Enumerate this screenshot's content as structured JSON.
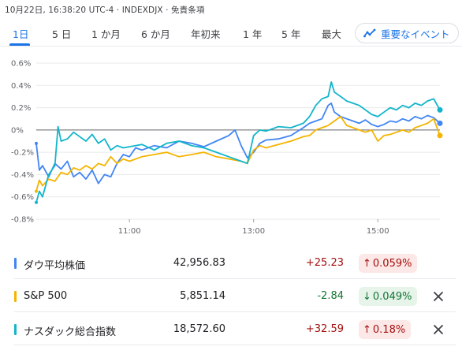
{
  "header": {
    "text": "10月22日, 16:38:20 UTC-4 · INDEXDJX · 免責条項"
  },
  "tabs": [
    {
      "label": "1日",
      "active": true
    },
    {
      "label": "5 日",
      "active": false
    },
    {
      "label": "1 か月",
      "active": false
    },
    {
      "label": "6 か月",
      "active": false
    },
    {
      "label": "年初来",
      "active": false
    },
    {
      "label": "1 年",
      "active": false
    },
    {
      "label": "5 年",
      "active": false
    },
    {
      "label": "最大",
      "active": false
    }
  ],
  "events_button": {
    "label": "重要なイベント",
    "icon": "trend-icon"
  },
  "chart_data": {
    "type": "line",
    "x_ticks": [
      "11:00",
      "13:00",
      "15:00"
    ],
    "y_ticks": [
      "0.6%",
      "0.4%",
      "0.2%",
      "0%",
      "-0.2%",
      "-0.4%",
      "-0.6%",
      "-0.8%"
    ],
    "ylim": [
      -0.8,
      0.6
    ],
    "x_unit": "hours",
    "xlim": [
      9.5,
      16.0
    ],
    "baseline": 0,
    "series": [
      {
        "name": "ダウ平均株価",
        "color": "#4285f4",
        "points": [
          [
            9.5,
            -0.12
          ],
          [
            9.55,
            -0.36
          ],
          [
            9.6,
            -0.32
          ],
          [
            9.7,
            -0.42
          ],
          [
            9.8,
            -0.3
          ],
          [
            9.9,
            -0.35
          ],
          [
            10.0,
            -0.28
          ],
          [
            10.1,
            -0.42
          ],
          [
            10.2,
            -0.38
          ],
          [
            10.3,
            -0.44
          ],
          [
            10.4,
            -0.36
          ],
          [
            10.5,
            -0.48
          ],
          [
            10.6,
            -0.4
          ],
          [
            10.7,
            -0.42
          ],
          [
            10.8,
            -0.3
          ],
          [
            10.9,
            -0.22
          ],
          [
            11.0,
            -0.24
          ],
          [
            11.1,
            -0.16
          ],
          [
            11.2,
            -0.18
          ],
          [
            11.4,
            -0.14
          ],
          [
            11.6,
            -0.16
          ],
          [
            11.8,
            -0.1
          ],
          [
            12.0,
            -0.12
          ],
          [
            12.2,
            -0.15
          ],
          [
            12.4,
            -0.1
          ],
          [
            12.6,
            -0.05
          ],
          [
            12.7,
            0.0
          ],
          [
            12.8,
            -0.14
          ],
          [
            12.9,
            -0.25
          ],
          [
            13.0,
            -0.2
          ],
          [
            13.1,
            -0.12
          ],
          [
            13.2,
            -0.09
          ],
          [
            13.4,
            -0.08
          ],
          [
            13.6,
            -0.05
          ],
          [
            13.8,
            0.02
          ],
          [
            13.9,
            0.06
          ],
          [
            14.0,
            0.08
          ],
          [
            14.1,
            0.1
          ],
          [
            14.2,
            0.22
          ],
          [
            14.25,
            0.24
          ],
          [
            14.3,
            0.16
          ],
          [
            14.4,
            0.12
          ],
          [
            14.5,
            0.1
          ],
          [
            14.6,
            0.08
          ],
          [
            14.7,
            0.06
          ],
          [
            14.8,
            0.09
          ],
          [
            14.9,
            0.05
          ],
          [
            15.0,
            0.03
          ],
          [
            15.1,
            0.05
          ],
          [
            15.2,
            0.08
          ],
          [
            15.3,
            0.07
          ],
          [
            15.4,
            0.1
          ],
          [
            15.5,
            0.08
          ],
          [
            15.6,
            0.12
          ],
          [
            15.7,
            0.1
          ],
          [
            15.8,
            0.13
          ],
          [
            15.9,
            0.11
          ],
          [
            16.0,
            0.06
          ]
        ]
      },
      {
        "name": "S&P 500",
        "color": "#f4b400",
        "points": [
          [
            9.5,
            -0.55
          ],
          [
            9.55,
            -0.45
          ],
          [
            9.6,
            -0.5
          ],
          [
            9.7,
            -0.44
          ],
          [
            9.8,
            -0.46
          ],
          [
            9.9,
            -0.38
          ],
          [
            10.0,
            -0.4
          ],
          [
            10.1,
            -0.34
          ],
          [
            10.2,
            -0.36
          ],
          [
            10.3,
            -0.32
          ],
          [
            10.4,
            -0.35
          ],
          [
            10.5,
            -0.3
          ],
          [
            10.6,
            -0.32
          ],
          [
            10.7,
            -0.24
          ],
          [
            10.8,
            -0.3
          ],
          [
            10.9,
            -0.26
          ],
          [
            11.0,
            -0.28
          ],
          [
            11.2,
            -0.24
          ],
          [
            11.4,
            -0.22
          ],
          [
            11.6,
            -0.2
          ],
          [
            11.8,
            -0.24
          ],
          [
            12.0,
            -0.22
          ],
          [
            12.2,
            -0.2
          ],
          [
            12.4,
            -0.24
          ],
          [
            12.6,
            -0.26
          ],
          [
            12.8,
            -0.28
          ],
          [
            12.9,
            -0.3
          ],
          [
            13.0,
            -0.18
          ],
          [
            13.1,
            -0.14
          ],
          [
            13.2,
            -0.16
          ],
          [
            13.4,
            -0.13
          ],
          [
            13.6,
            -0.1
          ],
          [
            13.8,
            -0.06
          ],
          [
            13.9,
            -0.05
          ],
          [
            14.0,
            0.0
          ],
          [
            14.1,
            0.02
          ],
          [
            14.2,
            0.04
          ],
          [
            14.3,
            0.08
          ],
          [
            14.4,
            0.12
          ],
          [
            14.45,
            0.08
          ],
          [
            14.5,
            0.04
          ],
          [
            14.6,
            0.02
          ],
          [
            14.7,
            0.0
          ],
          [
            14.8,
            -0.02
          ],
          [
            14.9,
            0.0
          ],
          [
            15.0,
            -0.1
          ],
          [
            15.1,
            -0.05
          ],
          [
            15.2,
            -0.04
          ],
          [
            15.3,
            -0.02
          ],
          [
            15.4,
            0.0
          ],
          [
            15.5,
            -0.02
          ],
          [
            15.6,
            0.02
          ],
          [
            15.7,
            0.04
          ],
          [
            15.8,
            0.06
          ],
          [
            15.9,
            0.1
          ],
          [
            16.0,
            -0.05
          ]
        ]
      },
      {
        "name": "ナスダック総合指数",
        "color": "#12b5cb",
        "points": [
          [
            9.5,
            -0.65
          ],
          [
            9.55,
            -0.55
          ],
          [
            9.6,
            -0.6
          ],
          [
            9.7,
            -0.4
          ],
          [
            9.8,
            -0.32
          ],
          [
            9.85,
            0.03
          ],
          [
            9.9,
            -0.1
          ],
          [
            10.0,
            -0.08
          ],
          [
            10.1,
            -0.02
          ],
          [
            10.2,
            -0.06
          ],
          [
            10.3,
            -0.1
          ],
          [
            10.4,
            -0.04
          ],
          [
            10.5,
            -0.12
          ],
          [
            10.6,
            -0.08
          ],
          [
            10.7,
            -0.18
          ],
          [
            10.8,
            -0.14
          ],
          [
            10.9,
            -0.16
          ],
          [
            11.0,
            -0.15
          ],
          [
            11.2,
            -0.13
          ],
          [
            11.4,
            -0.18
          ],
          [
            11.6,
            -0.12
          ],
          [
            11.8,
            -0.1
          ],
          [
            12.0,
            -0.14
          ],
          [
            12.2,
            -0.16
          ],
          [
            12.4,
            -0.2
          ],
          [
            12.6,
            -0.24
          ],
          [
            12.8,
            -0.28
          ],
          [
            12.9,
            -0.3
          ],
          [
            13.0,
            -0.05
          ],
          [
            13.1,
            0.0
          ],
          [
            13.2,
            -0.01
          ],
          [
            13.4,
            0.03
          ],
          [
            13.6,
            0.02
          ],
          [
            13.8,
            0.06
          ],
          [
            13.9,
            0.12
          ],
          [
            14.0,
            0.22
          ],
          [
            14.1,
            0.28
          ],
          [
            14.2,
            0.3
          ],
          [
            14.25,
            0.43
          ],
          [
            14.3,
            0.34
          ],
          [
            14.4,
            0.3
          ],
          [
            14.5,
            0.26
          ],
          [
            14.6,
            0.24
          ],
          [
            14.7,
            0.22
          ],
          [
            14.8,
            0.18
          ],
          [
            14.9,
            0.14
          ],
          [
            15.0,
            0.12
          ],
          [
            15.1,
            0.16
          ],
          [
            15.2,
            0.2
          ],
          [
            15.3,
            0.18
          ],
          [
            15.4,
            0.22
          ],
          [
            15.5,
            0.2
          ],
          [
            15.6,
            0.24
          ],
          [
            15.7,
            0.22
          ],
          [
            15.8,
            0.26
          ],
          [
            15.9,
            0.28
          ],
          [
            16.0,
            0.18
          ]
        ]
      }
    ]
  },
  "quotes": [
    {
      "name": "ダウ平均株価",
      "price": "42,956.83",
      "change": "+25.23",
      "pct": "0.059%",
      "direction": "up",
      "arrow": "↑",
      "color": "#4285f4",
      "removable": false
    },
    {
      "name": "S&P 500",
      "price": "5,851.14",
      "change": "-2.84",
      "pct": "0.049%",
      "direction": "down",
      "arrow": "↓",
      "color": "#f4b400",
      "removable": true
    },
    {
      "name": "ナスダック総合指数",
      "price": "18,572.60",
      "change": "+32.59",
      "pct": "0.18%",
      "direction": "up",
      "arrow": "↑",
      "color": "#12b5cb",
      "removable": true
    }
  ],
  "colors": {
    "accent": "#1a73e8",
    "up_text": "#a50e0e",
    "up_bg": "#fce8e6",
    "down_text": "#137333",
    "down_bg": "#e6f4ea"
  }
}
